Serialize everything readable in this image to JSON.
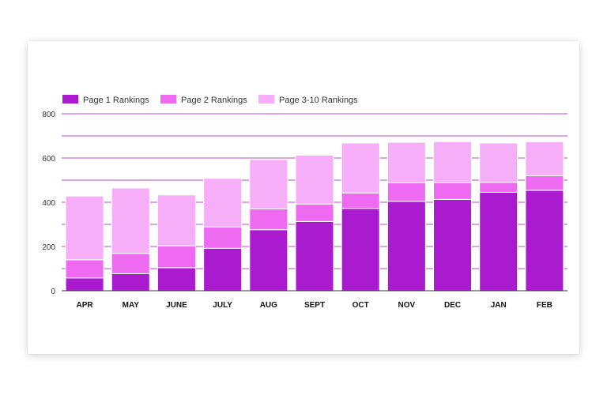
{
  "chart_data": {
    "type": "bar",
    "stacked": true,
    "title": "",
    "xlabel": "",
    "ylabel": "",
    "ylim": [
      0,
      800
    ],
    "yticks": [
      0,
      200,
      400,
      600,
      800
    ],
    "grid": true,
    "legend_position": "top-left",
    "categories": [
      "APR",
      "MAY",
      "JUNE",
      "JULY",
      "AUG",
      "SEPT",
      "OCT",
      "NOV",
      "DEC",
      "JAN",
      "FEB"
    ],
    "series": [
      {
        "name": "Page 1 Rankings",
        "color": "#aa1bcf",
        "values": [
          58,
          77,
          104,
          192,
          276,
          313,
          372,
          404,
          413,
          445,
          454
        ]
      },
      {
        "name": "Page 2 Rankings",
        "color": "#ee6af1",
        "values": [
          82,
          92,
          99,
          96,
          94,
          79,
          70,
          84,
          76,
          45,
          66
        ]
      },
      {
        "name": "Page 3-10 Rankings",
        "color": "#f7aef8",
        "values": [
          288,
          295,
          230,
          220,
          223,
          221,
          226,
          183,
          185,
          178,
          153
        ]
      }
    ]
  }
}
